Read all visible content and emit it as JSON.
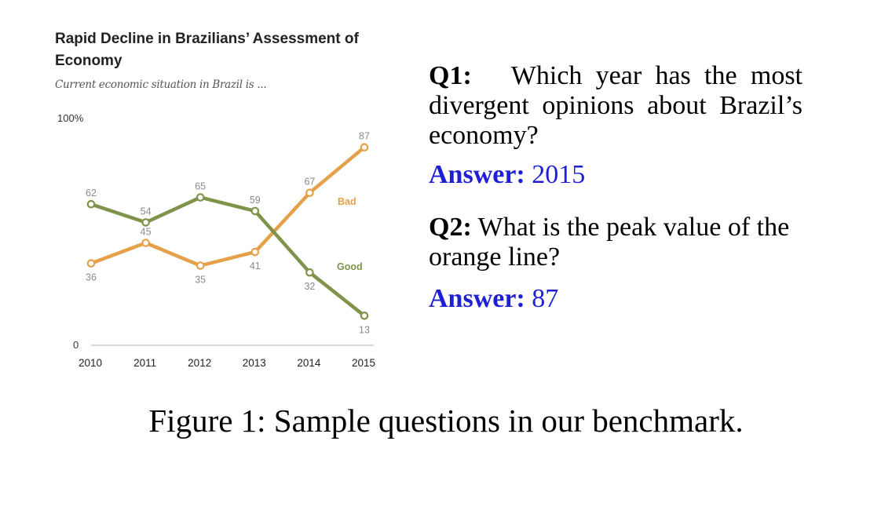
{
  "chart_data": {
    "type": "line",
    "title": "Rapid Decline in Brazilians’ Assessment of Economy",
    "subtitle": "Current economic situation in Brazil is ...",
    "x": [
      2010,
      2011,
      2012,
      2013,
      2014,
      2015
    ],
    "x_tick_labels": [
      "2010",
      "2011",
      "2012",
      "2013",
      "2014",
      "2015"
    ],
    "y_tick_labels": [
      "0",
      "100%"
    ],
    "ylim": [
      0,
      100
    ],
    "grid": false,
    "series": [
      {
        "name": "Bad",
        "color": "#E5A04A",
        "values": [
          36,
          45,
          35,
          41,
          67,
          87
        ],
        "value_labels": [
          "36",
          "45",
          "35",
          "41",
          "67",
          "87"
        ]
      },
      {
        "name": "Good",
        "color": "#7F944A",
        "values": [
          62,
          54,
          65,
          59,
          32,
          13
        ],
        "value_labels": [
          "62",
          "54",
          "65",
          "59",
          "32",
          "13"
        ]
      }
    ]
  },
  "qa": {
    "q1_label": "Q1:",
    "q1_text": "Which year has the most divergent opinions about Brazil’s economy?",
    "a1_label": "Answer:",
    "a1_value": "2015",
    "q2_label": "Q2:",
    "q2_text": "What is the peak value of the orange line?",
    "a2_label": "Answer:",
    "a2_value": "87"
  },
  "caption": "Figure 1: Sample questions in our benchmark."
}
